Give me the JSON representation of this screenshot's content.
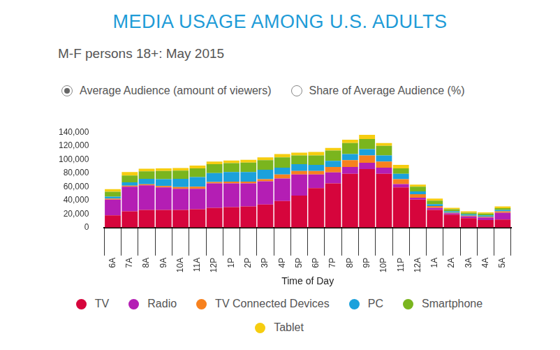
{
  "chart_data": {
    "type": "bar",
    "title": "MEDIA USAGE AMONG U.S. ADULTS",
    "subtitle": "M-F persons 18+: May 2015",
    "toggle_labels": [
      "Average Audience (amount of viewers)",
      "Share of Average Audience (%)"
    ],
    "x_label": "Time of Day",
    "categories": [
      "6A",
      "7A",
      "8A",
      "9A",
      "10A",
      "11A",
      "12P",
      "1P",
      "2P",
      "3P",
      "4P",
      "5P",
      "6P",
      "7P",
      "8P",
      "9P",
      "10P",
      "11P",
      "12A",
      "1A",
      "2A",
      "3A",
      "4A",
      "5A"
    ],
    "series": [
      {
        "name": "TV",
        "color": "#d6053c",
        "values": [
          18000,
          24000,
          26000,
          26000,
          26000,
          27000,
          29000,
          30000,
          31000,
          34000,
          39000,
          47000,
          58000,
          65000,
          79000,
          86000,
          79000,
          59000,
          41000,
          26000,
          19000,
          14000,
          11000,
          12000
        ]
      },
      {
        "name": "Radio",
        "color": "#b41eb4",
        "values": [
          23000,
          36000,
          36000,
          33000,
          31000,
          30000,
          36000,
          35000,
          34000,
          34000,
          33000,
          31000,
          20000,
          16000,
          10000,
          9000,
          9000,
          5000,
          3000,
          3000,
          2000,
          2500,
          4000,
          10000
        ]
      },
      {
        "name": "TV Connected Devices",
        "color": "#f7811e",
        "values": [
          1500,
          1500,
          1500,
          2000,
          2500,
          3000,
          2000,
          2500,
          2500,
          3000,
          6000,
          5000,
          5000,
          8000,
          10000,
          11000,
          9000,
          7000,
          5000,
          2500,
          1000,
          1000,
          1000,
          2000
        ]
      },
      {
        "name": "PC",
        "color": "#1ba1dc",
        "values": [
          3000,
          5000,
          8000,
          10000,
          12000,
          14000,
          13000,
          14000,
          14000,
          14000,
          10000,
          10000,
          9000,
          9000,
          9000,
          9000,
          9000,
          8000,
          4000,
          3000,
          2000,
          2000,
          2000,
          2000
        ]
      },
      {
        "name": "Smartphone",
        "color": "#7ab51e",
        "values": [
          7000,
          10000,
          11000,
          12000,
          12000,
          13000,
          13000,
          13000,
          14000,
          14000,
          15000,
          13000,
          14000,
          15000,
          16000,
          15000,
          14000,
          8000,
          7000,
          5000,
          3000,
          2500,
          2500,
          2500
        ]
      },
      {
        "name": "Tablet",
        "color": "#f6cd10",
        "values": [
          4000,
          5000,
          4000,
          4000,
          4000,
          4000,
          4000,
          4000,
          4000,
          4000,
          5000,
          4000,
          5000,
          4000,
          5000,
          6000,
          4000,
          5000,
          3000,
          3000,
          2000,
          2000,
          2000,
          2500
        ]
      }
    ],
    "ylim": [
      0,
      140000
    ],
    "yticks": [
      0,
      {
        "value": 20000,
        "label": "20,000"
      },
      {
        "value": 40000,
        "label": "40,000"
      },
      {
        "value": 60000,
        "label": "60,000"
      },
      {
        "value": 80000,
        "label": "80,000"
      },
      {
        "value": 100000,
        "label": "100,000"
      },
      {
        "value": 120000,
        "label": "120,000"
      },
      {
        "value": 140000,
        "label": "140,000"
      }
    ],
    "stacked": true,
    "grid": false,
    "legend": "bottom"
  }
}
